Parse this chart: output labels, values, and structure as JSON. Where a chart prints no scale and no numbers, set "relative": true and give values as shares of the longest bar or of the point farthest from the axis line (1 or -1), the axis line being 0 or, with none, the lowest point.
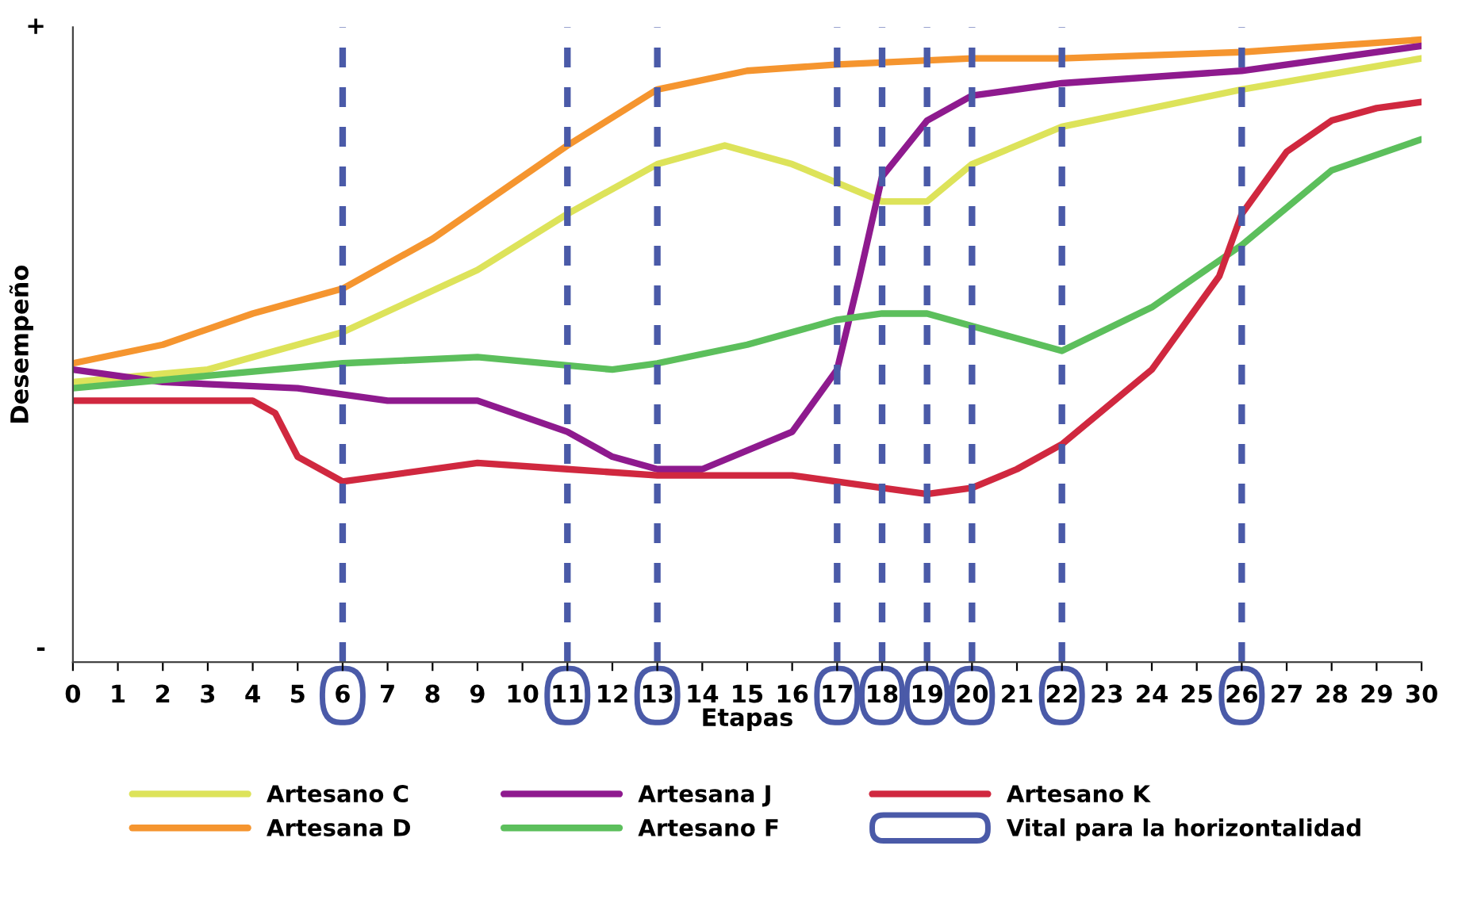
{
  "chart_data": {
    "type": "line",
    "relative": true,
    "xlabel": "Etapas",
    "ylabel": "Desempeño",
    "xlim": [
      0,
      30
    ],
    "xticks": [
      0,
      1,
      2,
      3,
      4,
      5,
      6,
      7,
      8,
      9,
      10,
      11,
      12,
      13,
      14,
      15,
      16,
      17,
      18,
      19,
      20,
      21,
      22,
      23,
      24,
      25,
      26,
      27,
      28,
      29,
      30
    ],
    "annotations": [
      "+",
      "-"
    ],
    "series": [
      {
        "name": "Artesano C",
        "color": "#dde35a",
        "x": [
          0,
          3,
          6,
          9,
          11,
          13,
          14.5,
          16,
          17,
          18,
          19,
          20,
          22,
          26,
          30
        ],
        "values": [
          0.45,
          0.47,
          0.53,
          0.63,
          0.72,
          0.8,
          0.83,
          0.8,
          0.77,
          0.74,
          0.74,
          0.8,
          0.86,
          0.92,
          0.97
        ]
      },
      {
        "name": "Artesana D",
        "color": "#f5952f",
        "x": [
          0,
          2,
          4,
          6,
          8,
          10,
          11,
          13,
          15,
          17,
          20,
          22,
          26,
          30
        ],
        "values": [
          0.48,
          0.51,
          0.56,
          0.6,
          0.68,
          0.78,
          0.83,
          0.92,
          0.95,
          0.96,
          0.97,
          0.97,
          0.98,
          1
        ]
      },
      {
        "name": "Artesana J",
        "color": "#8e1a8e",
        "x": [
          0,
          2,
          5,
          7,
          9,
          11,
          12,
          13,
          14,
          16,
          17,
          17.5,
          18,
          19,
          20,
          22,
          26,
          30
        ],
        "values": [
          0.47,
          0.45,
          0.44,
          0.42,
          0.42,
          0.37,
          0.33,
          0.31,
          0.31,
          0.37,
          0.47,
          0.62,
          0.78,
          0.87,
          0.91,
          0.93,
          0.95,
          0.99
        ]
      },
      {
        "name": "Artesano F",
        "color": "#5cbf5c",
        "x": [
          0,
          3,
          6,
          9,
          12,
          13,
          15,
          17,
          18,
          19,
          20,
          22,
          24,
          26,
          28,
          30
        ],
        "values": [
          0.44,
          0.46,
          0.48,
          0.49,
          0.47,
          0.48,
          0.51,
          0.55,
          0.56,
          0.56,
          0.54,
          0.5,
          0.57,
          0.67,
          0.79,
          0.84
        ]
      },
      {
        "name": "Artesano K",
        "color": "#d0283f",
        "x": [
          0,
          4,
          4.5,
          5,
          6,
          7,
          9,
          11,
          13,
          15,
          16,
          18,
          19,
          20,
          21,
          22,
          24,
          25.5,
          26,
          27,
          28,
          29,
          30
        ],
        "values": [
          0.42,
          0.42,
          0.4,
          0.33,
          0.29,
          0.3,
          0.32,
          0.31,
          0.3,
          0.3,
          0.3,
          0.28,
          0.27,
          0.28,
          0.31,
          0.35,
          0.47,
          0.62,
          0.72,
          0.82,
          0.87,
          0.89,
          0.9
        ]
      }
    ],
    "ref_lines": [
      {
        "axis": "x",
        "value": 6,
        "label": "Vital para la horizontalidad",
        "color": "#4a5aa8",
        "line_style": "dashed"
      },
      {
        "axis": "x",
        "value": 11,
        "color": "#4a5aa8",
        "line_style": "dashed"
      },
      {
        "axis": "x",
        "value": 13,
        "color": "#4a5aa8",
        "line_style": "dashed"
      },
      {
        "axis": "x",
        "value": 17,
        "color": "#4a5aa8",
        "line_style": "dashed"
      },
      {
        "axis": "x",
        "value": 18,
        "color": "#4a5aa8",
        "line_style": "dashed"
      },
      {
        "axis": "x",
        "value": 19,
        "color": "#4a5aa8",
        "line_style": "dashed"
      },
      {
        "axis": "x",
        "value": 20,
        "color": "#4a5aa8",
        "line_style": "dashed"
      },
      {
        "axis": "x",
        "value": 22,
        "color": "#4a5aa8",
        "line_style": "dashed"
      },
      {
        "axis": "x",
        "value": 26,
        "color": "#4a5aa8",
        "line_style": "dashed"
      }
    ],
    "legend": "bottom",
    "grid": false,
    "marker": "none",
    "line_style": "solid"
  }
}
